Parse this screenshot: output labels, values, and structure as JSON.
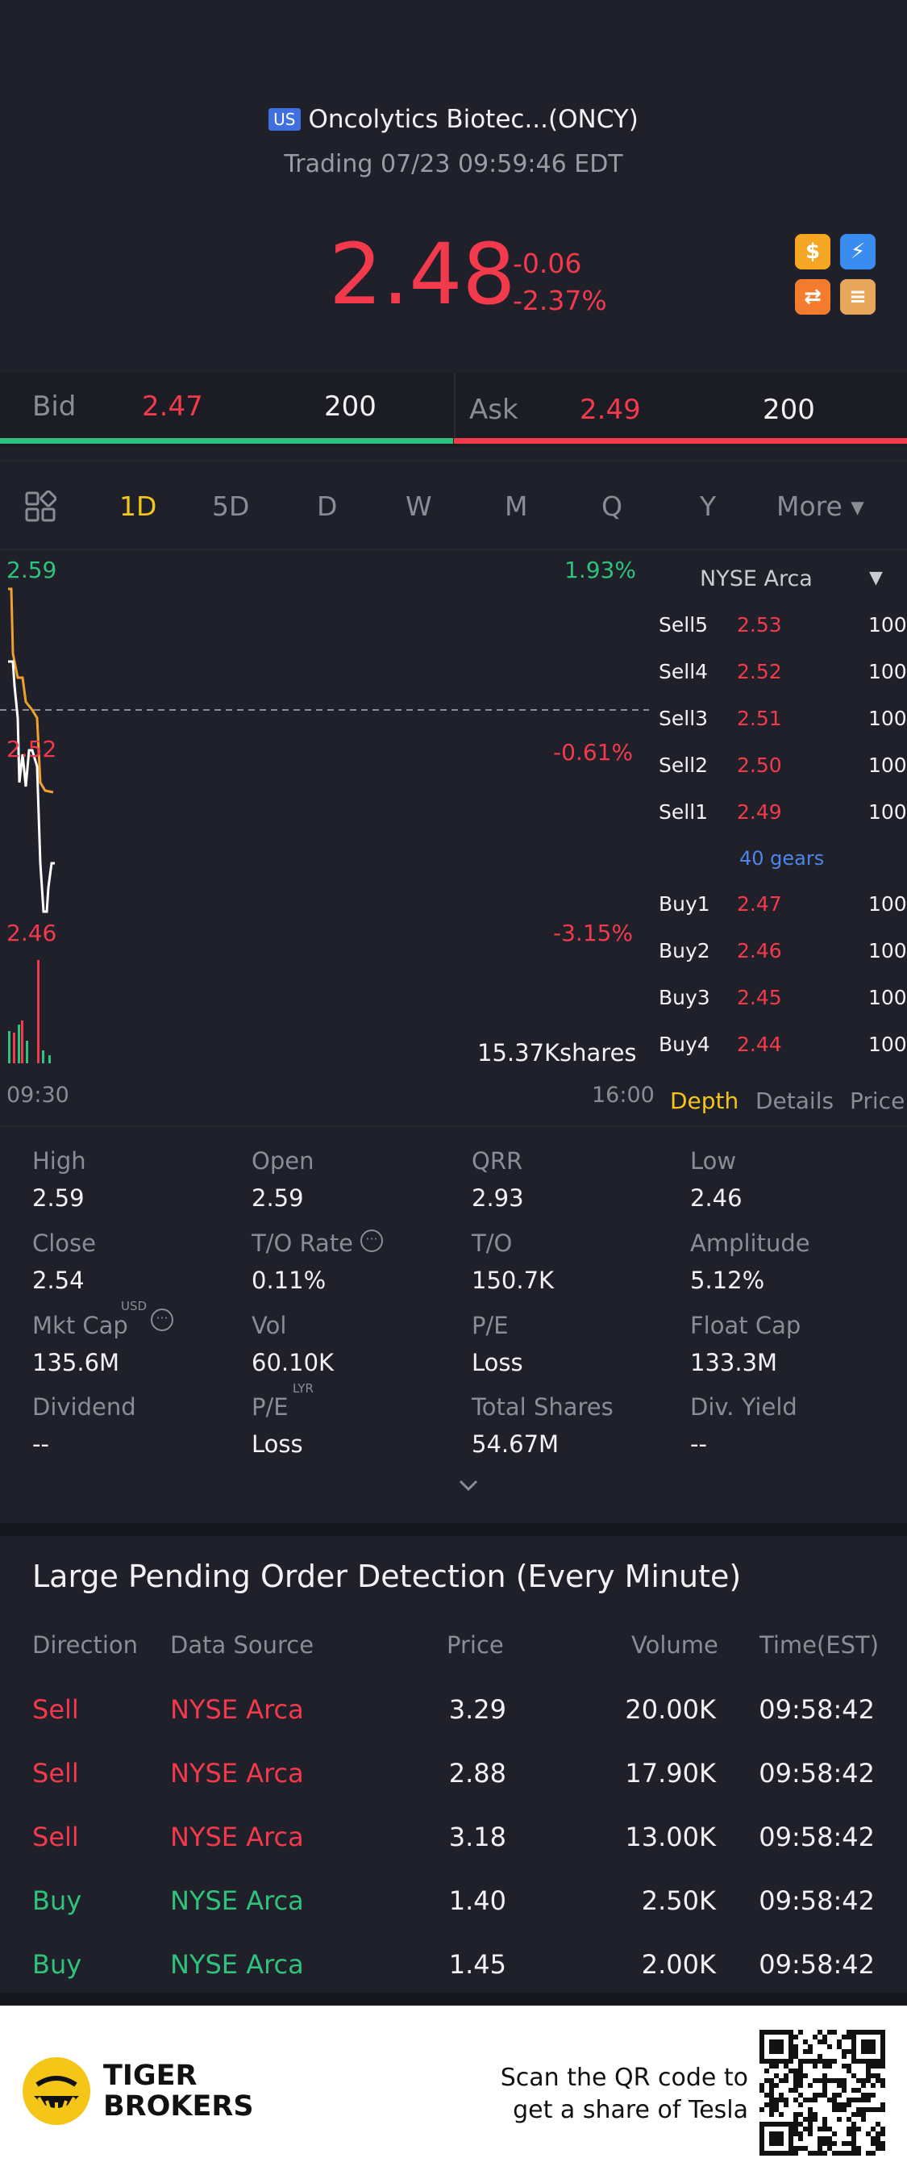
{
  "header": {
    "market_badge": "US",
    "stock_name": "Oncolytics Biotec...(ONCY)",
    "trading_status": "Trading 07/23 09:59:46 EDT",
    "price": "2.48",
    "change": "-0.06",
    "change_pct": "-2.37%",
    "icons": [
      "dollar-icon",
      "lightning-icon",
      "swap-icon",
      "stack-icon"
    ]
  },
  "quote": {
    "bid_label": "Bid",
    "bid_price": "2.47",
    "bid_size": "200",
    "ask_label": "Ask",
    "ask_price": "2.49",
    "ask_size": "200"
  },
  "tabs": [
    "1D",
    "5D",
    "D",
    "W",
    "M",
    "Q",
    "Y",
    "More ▾"
  ],
  "active_tab": "1D",
  "chart": {
    "high_label": "2.59",
    "high_pct": "1.93%",
    "mid_label": "2.52",
    "mid_pct": "-0.61%",
    "low_label": "2.46",
    "low_pct": "-3.15%",
    "volume_label": "15.37Kshares",
    "time_start": "09:30",
    "time_end": "16:00"
  },
  "order_book": {
    "exchange": "NYSE Arca",
    "sells": [
      {
        "label": "Sell5",
        "price": "2.53",
        "vol": "100"
      },
      {
        "label": "Sell4",
        "price": "2.52",
        "vol": "100"
      },
      {
        "label": "Sell3",
        "price": "2.51",
        "vol": "100"
      },
      {
        "label": "Sell2",
        "price": "2.50",
        "vol": "100"
      },
      {
        "label": "Sell1",
        "price": "2.49",
        "vol": "100"
      }
    ],
    "gears": "40 gears",
    "buys": [
      {
        "label": "Buy1",
        "price": "2.47",
        "vol": "100"
      },
      {
        "label": "Buy2",
        "price": "2.46",
        "vol": "100"
      },
      {
        "label": "Buy3",
        "price": "2.45",
        "vol": "100"
      },
      {
        "label": "Buy4",
        "price": "2.44",
        "vol": "100"
      }
    ],
    "tabs": [
      "Depth",
      "Details",
      "Price"
    ]
  },
  "stats": [
    {
      "k": "High",
      "v": "2.59"
    },
    {
      "k": "Open",
      "v": "2.59"
    },
    {
      "k": "QRR",
      "v": "2.93"
    },
    {
      "k": "Low",
      "v": "2.46"
    },
    {
      "k": "Close",
      "v": "2.54"
    },
    {
      "k": "T/O Rate",
      "v": "0.11%"
    },
    {
      "k": "T/O",
      "v": "150.7K"
    },
    {
      "k": "Amplitude",
      "v": "5.12%"
    },
    {
      "k": "Mkt Cap",
      "v": "135.6M"
    },
    {
      "k": "Vol",
      "v": "60.10K"
    },
    {
      "k": "P/E",
      "v": "Loss"
    },
    {
      "k": "Float Cap",
      "v": "133.3M"
    },
    {
      "k": "Dividend",
      "v": "--"
    },
    {
      "k": "P/E",
      "v": "Loss"
    },
    {
      "k": "Total Shares",
      "v": "54.67M"
    },
    {
      "k": "Div. Yield",
      "v": "--"
    }
  ],
  "stats_superscripts": {
    "mkt_cap": "USD",
    "pe_lyr": "LYR"
  },
  "large_orders": {
    "title": "Large Pending Order Detection (Every Minute)",
    "headers": [
      "Direction",
      "Data Source",
      "Price",
      "Volume",
      "Time(EST)"
    ],
    "rows": [
      {
        "dir": "Sell",
        "src": "NYSE Arca",
        "price": "3.29",
        "vol": "20.00K",
        "time": "09:58:42"
      },
      {
        "dir": "Sell",
        "src": "NYSE Arca",
        "price": "2.88",
        "vol": "17.90K",
        "time": "09:58:42"
      },
      {
        "dir": "Sell",
        "src": "NYSE Arca",
        "price": "3.18",
        "vol": "13.00K",
        "time": "09:58:42"
      },
      {
        "dir": "Buy",
        "src": "NYSE Arca",
        "price": "1.40",
        "vol": "2.50K",
        "time": "09:58:42"
      },
      {
        "dir": "Buy",
        "src": "NYSE Arca",
        "price": "1.45",
        "vol": "2.00K",
        "time": "09:58:42"
      }
    ]
  },
  "footer": {
    "brand_line1": "TIGER",
    "brand_line2": "BROKERS",
    "promo_line1": "Scan the QR code to",
    "promo_line2": "get a share of Tesla"
  },
  "colors": {
    "up": "#2fc27c",
    "down": "#f23a4c",
    "accent": "#f5c518",
    "bg": "#1f2029"
  }
}
